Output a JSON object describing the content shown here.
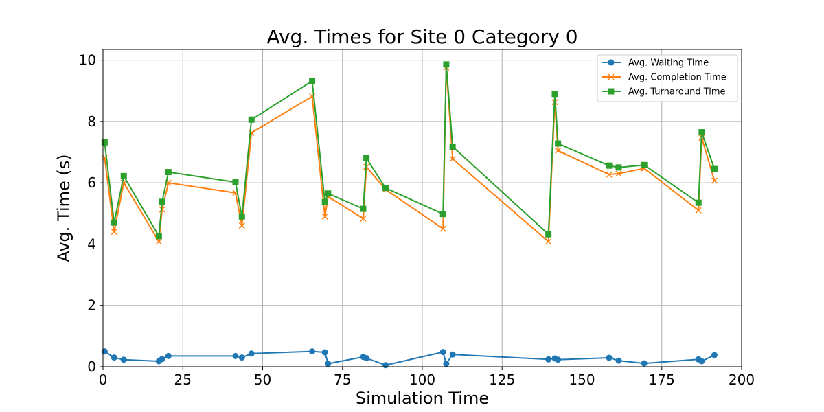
{
  "chart_data": {
    "type": "line",
    "title": "Avg. Times for Site 0 Category 0",
    "xlabel": "Simulation Time",
    "ylabel": "Avg. Time (s)",
    "xlim": [
      0,
      200
    ],
    "ylim": [
      0,
      10.35
    ],
    "xticks": [
      0,
      25,
      50,
      75,
      100,
      125,
      150,
      175,
      200
    ],
    "yticks": [
      0,
      2,
      4,
      6,
      8,
      10
    ],
    "grid": true,
    "legend_position": "top-right",
    "x": [
      0.5,
      3.5,
      6.5,
      17.5,
      18.5,
      20.5,
      41.5,
      43.5,
      46.5,
      65.5,
      69.5,
      70.5,
      81.5,
      82.5,
      88.5,
      106.5,
      107.5,
      109.5,
      139.5,
      141.5,
      142.5,
      158.5,
      161.5,
      169.5,
      186.5,
      187.5,
      191.5
    ],
    "series": [
      {
        "name": "Avg. Waiting Time",
        "color": "#1f77b4",
        "marker": "circle",
        "values": [
          0.5,
          0.3,
          0.23,
          0.18,
          0.25,
          0.35,
          0.35,
          0.3,
          0.43,
          0.5,
          0.47,
          0.1,
          0.32,
          0.28,
          0.05,
          0.48,
          0.1,
          0.4,
          0.24,
          0.27,
          0.23,
          0.29,
          0.2,
          0.11,
          0.24,
          0.18,
          0.38
        ]
      },
      {
        "name": "Avg. Completion Time",
        "color": "#ff7f0e",
        "marker": "x",
        "values": [
          6.82,
          4.4,
          6.0,
          4.08,
          5.13,
          6.0,
          5.67,
          4.6,
          7.63,
          8.82,
          4.9,
          5.55,
          4.83,
          6.52,
          5.78,
          4.5,
          9.76,
          6.78,
          4.08,
          8.63,
          7.05,
          6.27,
          6.3,
          6.47,
          5.1,
          7.47,
          6.07
        ]
      },
      {
        "name": "Avg. Turnaround Time",
        "color": "#2ca02c",
        "marker": "square",
        "values": [
          7.32,
          4.7,
          6.22,
          4.26,
          5.38,
          6.35,
          6.02,
          4.9,
          8.06,
          9.32,
          5.37,
          5.65,
          5.15,
          6.8,
          5.83,
          4.98,
          9.86,
          7.18,
          4.32,
          8.9,
          7.28,
          6.56,
          6.5,
          6.58,
          5.35,
          7.65,
          6.45
        ]
      }
    ]
  }
}
